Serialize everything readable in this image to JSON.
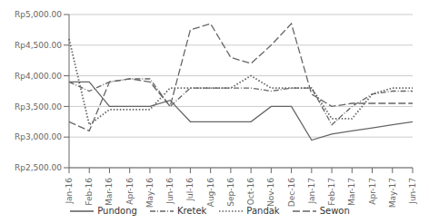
{
  "chart_data": {
    "type": "line",
    "categories": [
      "Jan-16",
      "Feb-16",
      "Mar-16",
      "Apr-16",
      "May-16",
      "Jun-16",
      "Jul-16",
      "Aug-16",
      "Sep-16",
      "Oct-16",
      "Nov-16",
      "Dec-16",
      "Jan-17",
      "Feb-17",
      "Mar-17",
      "Apr-17",
      "May-17",
      "Jun-17"
    ],
    "series": [
      {
        "name": "Pundong",
        "color": "#666666",
        "line_style": "solid",
        "values": [
          3900,
          3900,
          3500,
          3500,
          3500,
          3600,
          3250,
          3250,
          3250,
          3250,
          3500,
          3500,
          2950,
          3050,
          3100,
          3150,
          3200,
          3250
        ]
      },
      {
        "name": "Kretek",
        "color": "#666666",
        "line_style": "dashdot",
        "values": [
          3900,
          3750,
          3900,
          3950,
          3950,
          3500,
          3800,
          3800,
          3800,
          3800,
          3750,
          3800,
          3800,
          3200,
          3500,
          3700,
          3750,
          3750
        ]
      },
      {
        "name": "Pandak",
        "color": "#666666",
        "line_style": "dotted",
        "values": [
          4600,
          3200,
          3450,
          3450,
          3450,
          3800,
          3800,
          3800,
          3800,
          4000,
          3800,
          3800,
          3800,
          3300,
          3300,
          3700,
          3800,
          3800
        ]
      },
      {
        "name": "Sewon",
        "color": "#666666",
        "line_style": "dashed",
        "values": [
          3250,
          3100,
          3900,
          3950,
          3900,
          3500,
          4750,
          4850,
          4300,
          4200,
          4500,
          4850,
          3700,
          3500,
          3550,
          3550,
          3550,
          3550
        ]
      }
    ],
    "ylim": [
      2500,
      5000
    ],
    "yticks": [
      {
        "value": 2500,
        "label": "Rp2,500.00"
      },
      {
        "value": 3000,
        "label": "Rp3,000.00"
      },
      {
        "value": 3500,
        "label": "Rp3,500.00"
      },
      {
        "value": 4000,
        "label": "Rp4,000.00"
      },
      {
        "value": 4500,
        "label": "Rp4,500.00"
      },
      {
        "value": 5000,
        "label": "Rp5,000.00"
      }
    ],
    "grid": true,
    "legend": "bottom",
    "marker": "none"
  }
}
